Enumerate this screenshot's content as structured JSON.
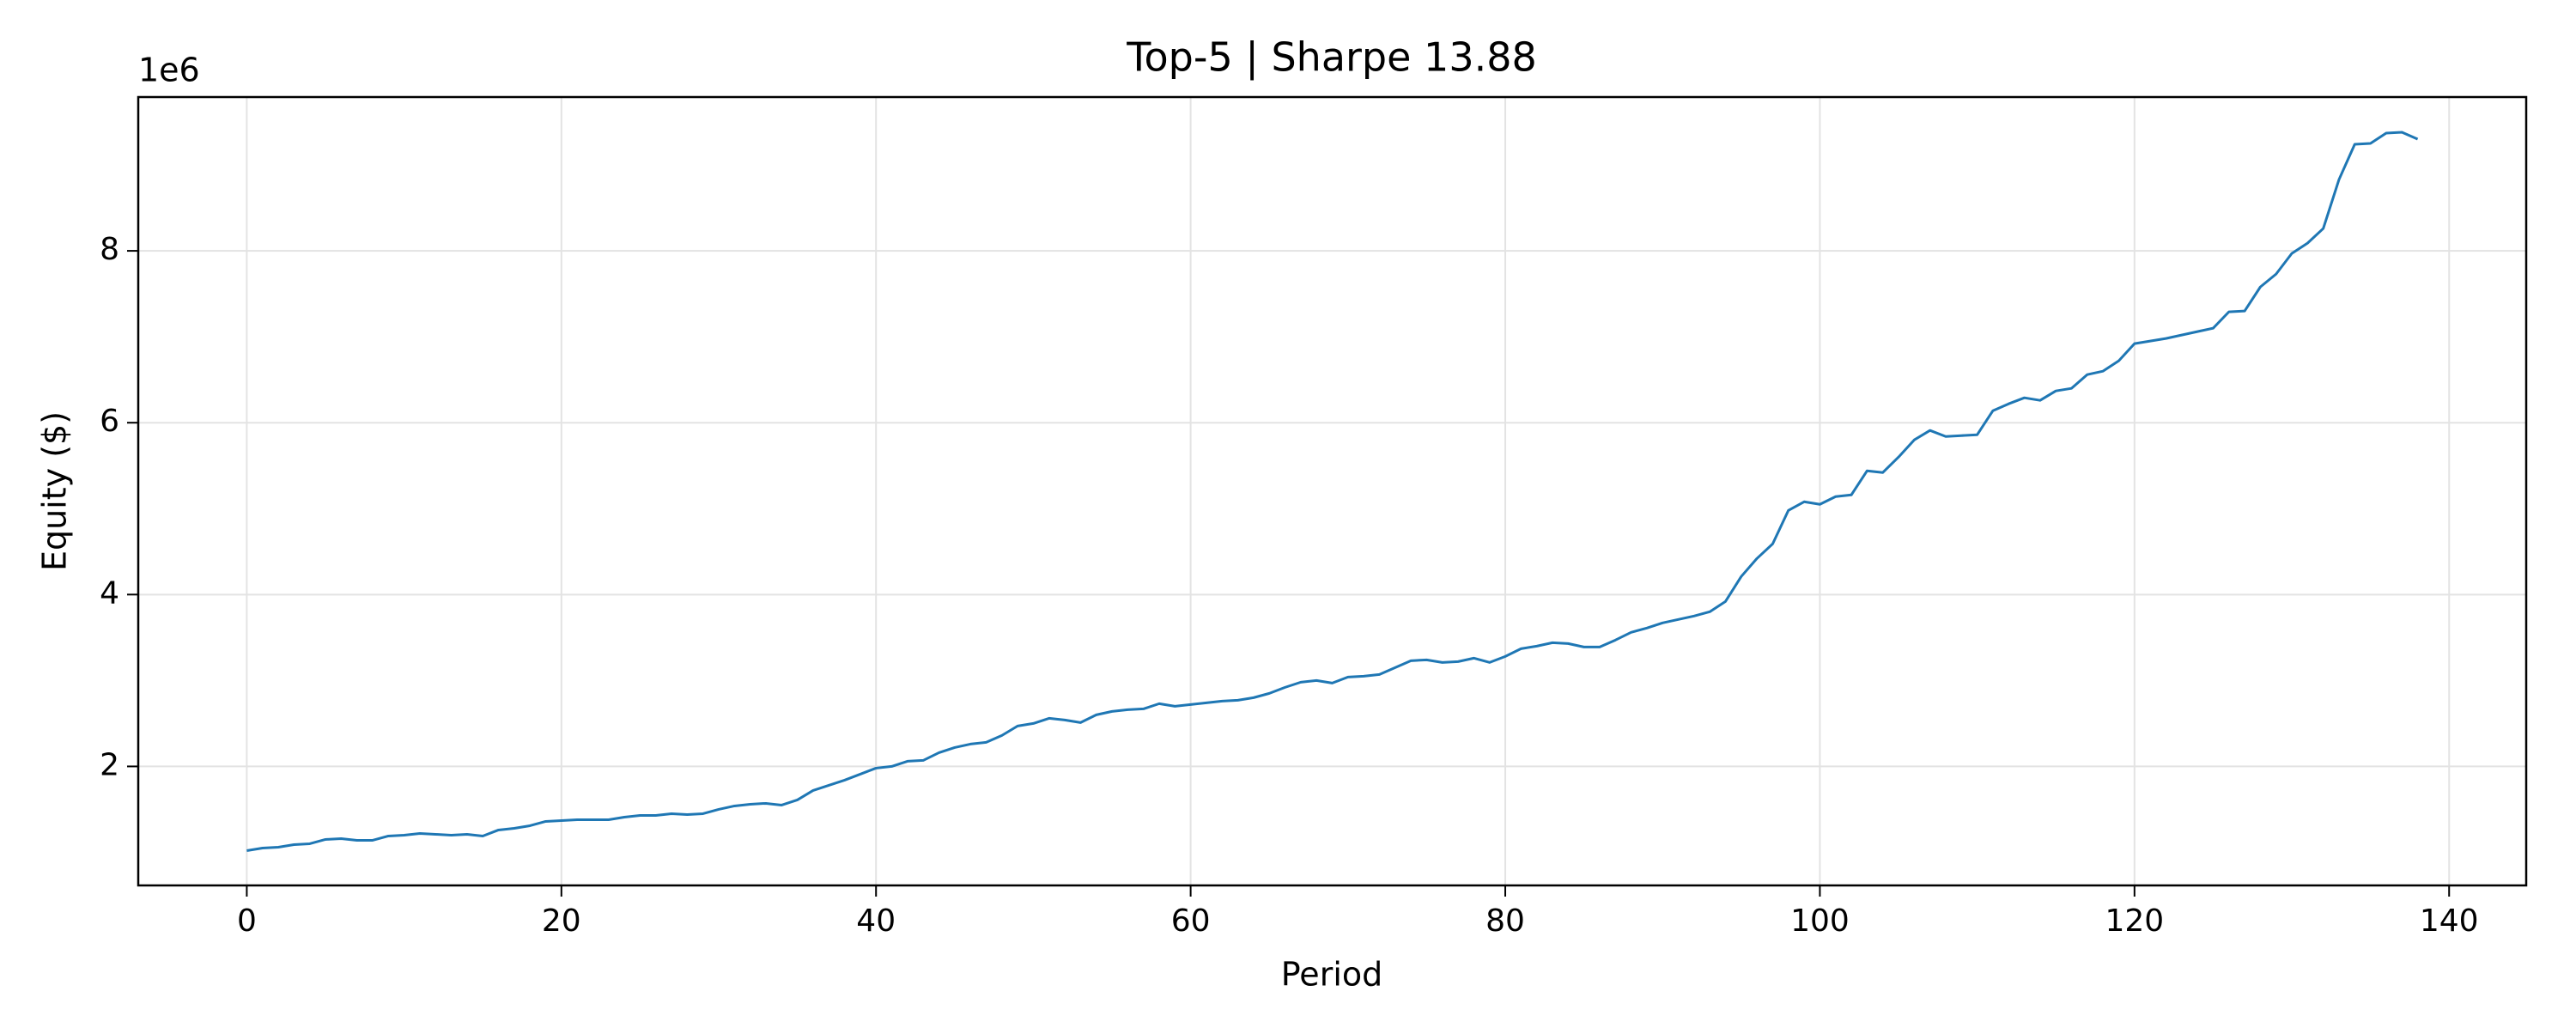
{
  "chart_data": {
    "type": "line",
    "title": "Top-5 | Sharpe 13.88",
    "x_label": "Period",
    "y_label": "Equity ($)",
    "y_offset_label": "1e6",
    "x": [
      0,
      1,
      2,
      3,
      4,
      5,
      6,
      7,
      8,
      9,
      10,
      11,
      12,
      13,
      14,
      15,
      16,
      17,
      18,
      19,
      20,
      21,
      22,
      23,
      24,
      25,
      26,
      27,
      28,
      29,
      30,
      31,
      32,
      33,
      34,
      35,
      36,
      37,
      38,
      39,
      40,
      41,
      42,
      43,
      44,
      45,
      46,
      47,
      48,
      49,
      50,
      51,
      52,
      53,
      54,
      55,
      56,
      57,
      58,
      59,
      60,
      61,
      62,
      63,
      64,
      65,
      66,
      67,
      68,
      69,
      70,
      71,
      72,
      73,
      74,
      75,
      76,
      77,
      78,
      79,
      80,
      81,
      82,
      83,
      84,
      85,
      86,
      87,
      88,
      89,
      90,
      91,
      92,
      93,
      94,
      95,
      96,
      97,
      98,
      99,
      100,
      101,
      102,
      103,
      104,
      105,
      106,
      107,
      108,
      109,
      110,
      111,
      112,
      113,
      114,
      115,
      116,
      117,
      118,
      119,
      120,
      121,
      122,
      123,
      124,
      125,
      126,
      127,
      128,
      129,
      130,
      131,
      132,
      133,
      134,
      135,
      136,
      137,
      138
    ],
    "series": [
      {
        "name": "Equity",
        "color": "#1f77b4",
        "values": [
          1020000,
          1050000,
          1060000,
          1090000,
          1100000,
          1150000,
          1160000,
          1140000,
          1140000,
          1190000,
          1200000,
          1220000,
          1210000,
          1200000,
          1210000,
          1190000,
          1260000,
          1280000,
          1310000,
          1360000,
          1370000,
          1380000,
          1380000,
          1380000,
          1410000,
          1430000,
          1430000,
          1450000,
          1440000,
          1450000,
          1500000,
          1540000,
          1560000,
          1570000,
          1550000,
          1610000,
          1720000,
          1780000,
          1840000,
          1910000,
          1980000,
          2000000,
          2060000,
          2070000,
          2160000,
          2220000,
          2260000,
          2280000,
          2360000,
          2470000,
          2500000,
          2560000,
          2540000,
          2510000,
          2600000,
          2640000,
          2660000,
          2670000,
          2730000,
          2700000,
          2720000,
          2740000,
          2760000,
          2770000,
          2800000,
          2850000,
          2920000,
          2980000,
          3000000,
          2970000,
          3040000,
          3050000,
          3070000,
          3150000,
          3230000,
          3240000,
          3210000,
          3220000,
          3260000,
          3210000,
          3280000,
          3370000,
          3400000,
          3440000,
          3430000,
          3390000,
          3390000,
          3470000,
          3560000,
          3610000,
          3670000,
          3710000,
          3750000,
          3800000,
          3920000,
          4210000,
          4420000,
          4590000,
          4980000,
          5080000,
          5050000,
          5140000,
          5160000,
          5440000,
          5420000,
          5600000,
          5800000,
          5910000,
          5840000,
          5850000,
          5860000,
          6140000,
          6220000,
          6290000,
          6260000,
          6370000,
          6400000,
          6560000,
          6600000,
          6720000,
          6920000,
          6950000,
          6980000,
          7020000,
          7060000,
          7100000,
          7290000,
          7300000,
          7580000,
          7730000,
          7970000,
          8090000,
          8260000,
          8830000,
          9240000,
          9250000,
          9370000,
          9380000,
          9300000
        ]
      }
    ],
    "xlim": [
      -6.9,
      144.9
    ],
    "xticks": [
      0,
      20,
      40,
      60,
      80,
      100,
      120,
      140
    ],
    "ylim": [
      615000,
      9790000
    ],
    "yticks": [
      {
        "value": 2000000,
        "label": "2"
      },
      {
        "value": 4000000,
        "label": "4"
      },
      {
        "value": 6000000,
        "label": "6"
      },
      {
        "value": 8000000,
        "label": "8"
      }
    ],
    "grid": true
  }
}
